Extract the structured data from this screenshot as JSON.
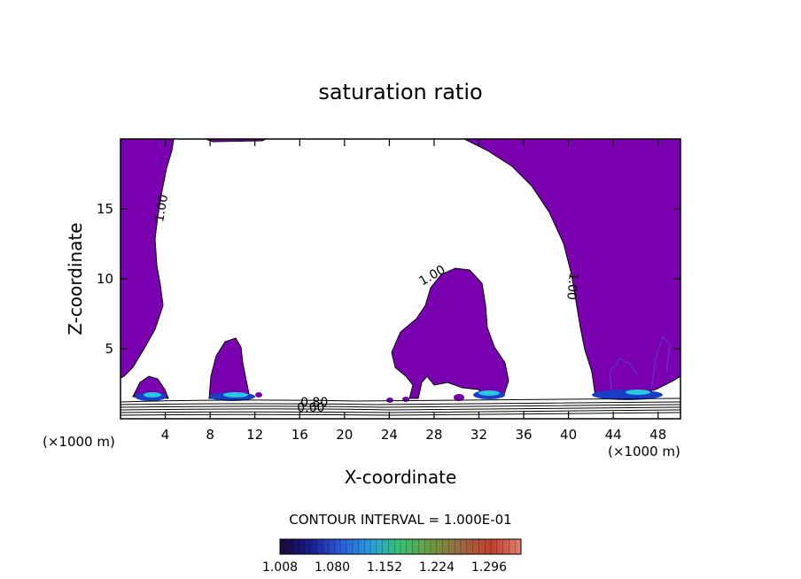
{
  "chart_data": {
    "type": "contour",
    "title": "saturation ratio",
    "xlabel": "X-coordinate",
    "ylabel": "Z-coordinate",
    "x_unit_label_left": "(×1000 m)",
    "x_unit_label_right": "(×1000 m)",
    "xlim": [
      0,
      50
    ],
    "ylim": [
      0,
      20
    ],
    "x_ticks": [
      4,
      8,
      12,
      16,
      20,
      24,
      28,
      32,
      36,
      40,
      44,
      48
    ],
    "y_ticks": [
      5,
      10,
      15
    ],
    "contour_interval_text": "CONTOUR INTERVAL = 1.000E-01",
    "contour_labels": [
      {
        "text": "1.00",
        "x": 4.0,
        "y": 15.0
      },
      {
        "text": "1.00",
        "x": 28.0,
        "y": 10.0
      },
      {
        "text": "1.00",
        "x": 40.0,
        "y": 9.5
      },
      {
        "text": "0.80",
        "x": 17.3,
        "y": 0.9
      },
      {
        "text": "0.60",
        "x": 17.0,
        "y": 0.5
      }
    ],
    "colorbar": {
      "tick_labels": [
        "1.008",
        "1.080",
        "1.152",
        "1.224",
        "1.296"
      ],
      "range": [
        1.008,
        1.34
      ]
    },
    "fill_colors": {
      "supersaturated": "#7b00b0",
      "background": "#ffffff",
      "high": "#27c8e0",
      "mid": "#1a3ec8"
    }
  }
}
